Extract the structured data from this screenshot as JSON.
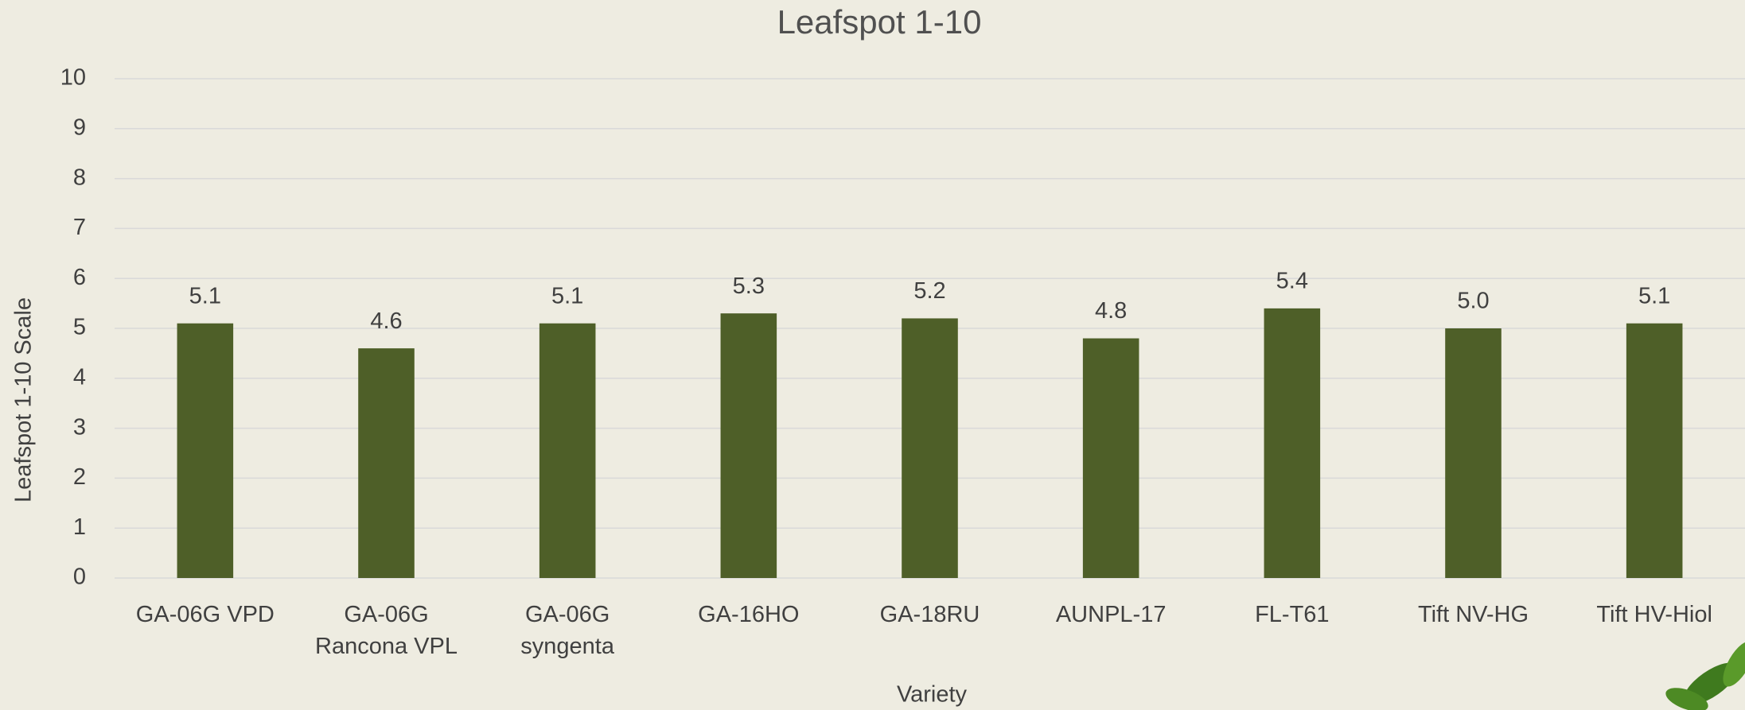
{
  "chart_data": {
    "type": "bar",
    "title": "Leafspot 1-10",
    "x_label": "Variety",
    "y_label": "Leafspot 1-10 Scale",
    "categories": [
      "GA-06G VPD",
      "GA-06G Rancona VPL",
      "GA-06G syngenta",
      "GA-16HO",
      "GA-18RU",
      "AUNPL-17",
      "FL-T61",
      "Tift NV-HG",
      "Tift HV-Hiol"
    ],
    "values": [
      5.1,
      4.6,
      5.1,
      5.3,
      5.2,
      4.8,
      5.4,
      5.0,
      5.1
    ],
    "value_labels": [
      "5.1",
      "4.6",
      "5.1",
      "5.3",
      "5.2",
      "4.8",
      "5.4",
      "5.0",
      "5.1"
    ],
    "color": "#4e5f28",
    "ylim": [
      0,
      10
    ],
    "yticks": [
      0,
      1,
      2,
      3,
      4,
      5,
      6,
      7,
      8,
      9,
      10
    ],
    "grid": true
  }
}
